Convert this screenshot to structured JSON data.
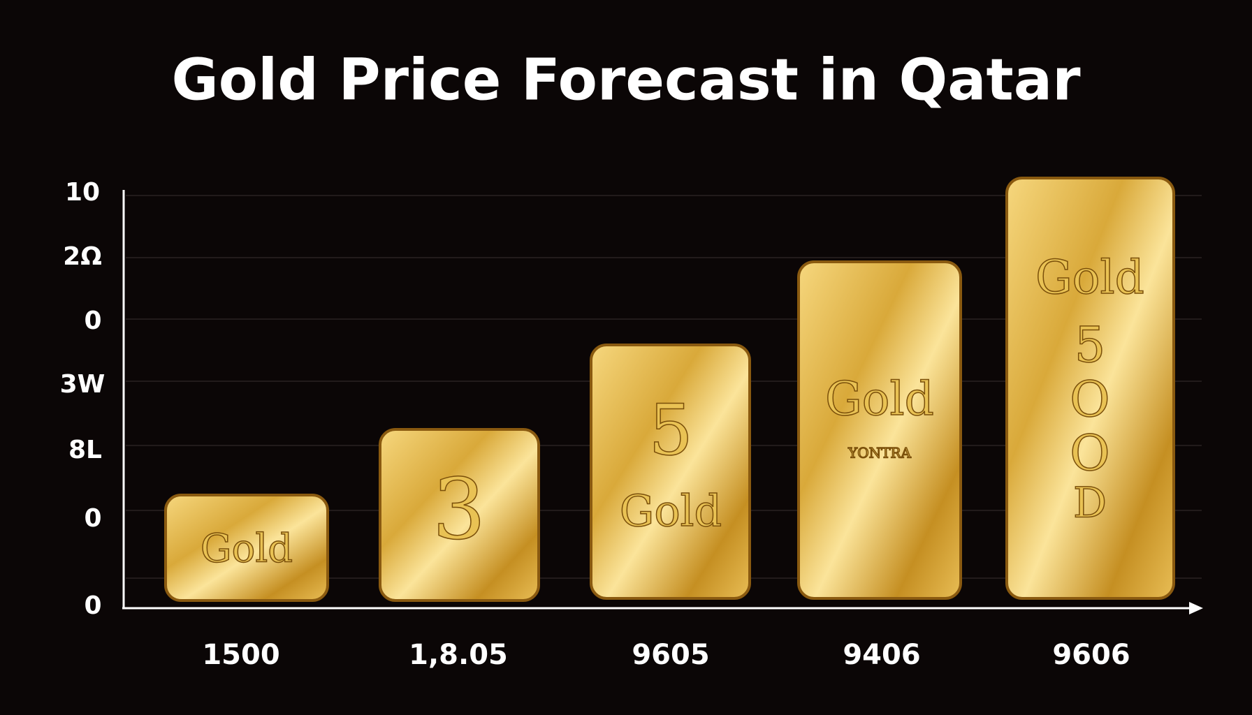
{
  "title": "Gold Price Forecast in Qatar",
  "y_axis_labels": [
    "10",
    "2Ω",
    "0",
    "3W",
    "8L",
    "0",
    "0"
  ],
  "x_axis_labels": [
    "1500",
    "1,8.05",
    "9605",
    "9406",
    "9606"
  ],
  "bars": [
    {
      "inscriptions": [
        "Gold"
      ]
    },
    {
      "inscriptions": [
        "3"
      ]
    },
    {
      "inscriptions": [
        "5",
        "Gold"
      ]
    },
    {
      "inscriptions": [
        "Gold",
        "YONTRA"
      ]
    },
    {
      "inscriptions": [
        "Gold",
        "5",
        "O",
        "O",
        "D"
      ]
    }
  ]
}
